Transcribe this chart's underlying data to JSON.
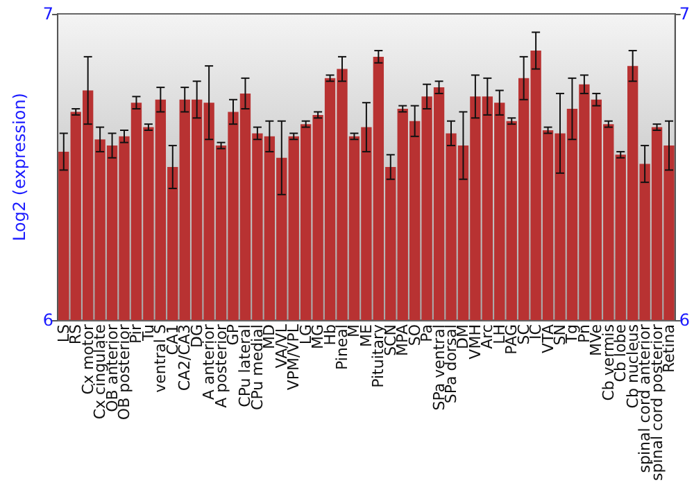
{
  "chart_data": {
    "type": "bar",
    "ylabel": "Log2 (expression)",
    "categories": [
      "LS",
      "RS",
      "Cx motor",
      "Cx cingulate",
      "OB anterior",
      "OB posterior",
      "Pir",
      "Tu",
      "ventral S",
      "CA1",
      "CA2/CA3",
      "DG",
      "A anterior",
      "A posterior",
      "GP",
      "CPu lateral",
      "CPu medial",
      "MD",
      "VA/VL",
      "VPM/VPL",
      "LG",
      "MG",
      "Hb",
      "Pineal",
      "M",
      "ME",
      "Pituitary",
      "SCN",
      "MPA",
      "SO",
      "Pa",
      "SPa ventral",
      "SPa dorsal",
      "DM",
      "VMH",
      "Arc",
      "LH",
      "PAG",
      "SC",
      "IC",
      "VTA",
      "SN",
      "Tg",
      "Pn",
      "MVe",
      "Cb vermis",
      "Cb lobe",
      "Cb nucleus",
      "spinal cord anterior",
      "spinal cord posterior",
      "Retina"
    ],
    "values": [
      6.55,
      6.68,
      6.75,
      6.59,
      6.57,
      6.6,
      6.71,
      6.63,
      6.72,
      6.5,
      6.72,
      6.72,
      6.71,
      6.57,
      6.68,
      6.74,
      6.61,
      6.6,
      6.53,
      6.6,
      6.64,
      6.67,
      6.79,
      6.82,
      6.6,
      6.63,
      6.86,
      6.5,
      6.69,
      6.65,
      6.73,
      6.76,
      6.61,
      6.57,
      6.73,
      6.73,
      6.71,
      6.65,
      6.79,
      6.88,
      6.62,
      6.61,
      6.69,
      6.77,
      6.72,
      6.64,
      6.54,
      6.83,
      6.51,
      6.63,
      6.57
    ],
    "errors": [
      0.06,
      0.01,
      0.11,
      0.04,
      0.04,
      0.02,
      0.02,
      0.01,
      0.04,
      0.07,
      0.04,
      0.06,
      0.12,
      0.01,
      0.04,
      0.05,
      0.02,
      0.05,
      0.12,
      0.01,
      0.01,
      0.01,
      0.01,
      0.04,
      0.01,
      0.08,
      0.02,
      0.04,
      0.01,
      0.05,
      0.04,
      0.02,
      0.04,
      0.11,
      0.07,
      0.06,
      0.04,
      0.01,
      0.07,
      0.06,
      0.01,
      0.13,
      0.1,
      0.03,
      0.02,
      0.01,
      0.01,
      0.05,
      0.06,
      0.01,
      0.08
    ],
    "color": "#b83232",
    "ylim": [
      6,
      7
    ],
    "yticks": [
      6,
      7
    ],
    "y2lim": [
      6,
      7
    ],
    "y2ticks": [
      6,
      7
    ],
    "grid": false
  }
}
